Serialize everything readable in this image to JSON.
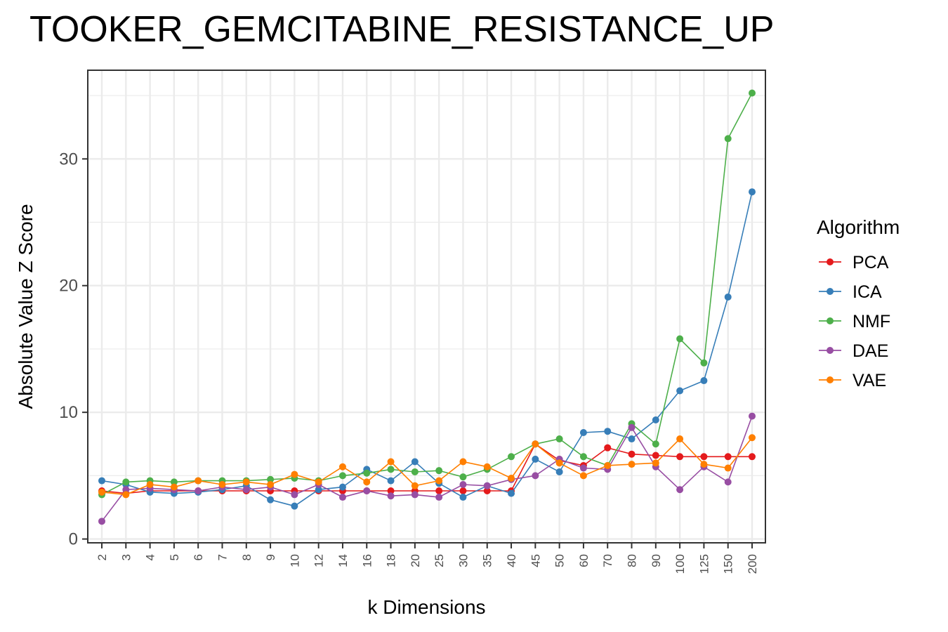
{
  "chart_data": {
    "type": "line",
    "title": "TOOKER_GEMCITABINE_RESISTANCE_UP",
    "xlabel": "k Dimensions",
    "ylabel": "Absolute Value Z Score",
    "x_scale": "categorical",
    "categories": [
      "2",
      "3",
      "4",
      "5",
      "6",
      "7",
      "8",
      "9",
      "10",
      "12",
      "14",
      "16",
      "18",
      "20",
      "25",
      "30",
      "35",
      "40",
      "45",
      "50",
      "60",
      "70",
      "80",
      "90",
      "100",
      "125",
      "150",
      "200"
    ],
    "y_ticks": [
      0,
      10,
      20,
      30
    ],
    "ylim": [
      -0.3,
      37
    ],
    "grid": true,
    "legend_title": "Algorithm",
    "legend_position": "right",
    "series": [
      {
        "name": "PCA",
        "color": "#e41a1c",
        "values": [
          3.8,
          3.6,
          3.8,
          3.8,
          3.8,
          3.8,
          3.8,
          3.8,
          3.8,
          3.8,
          3.8,
          3.8,
          3.8,
          3.8,
          3.8,
          3.8,
          3.8,
          3.8,
          7.5,
          6.2,
          5.8,
          7.2,
          6.7,
          6.6,
          6.5,
          6.5,
          6.5,
          6.5
        ]
      },
      {
        "name": "ICA",
        "color": "#377eb8",
        "values": [
          4.6,
          4.3,
          3.7,
          3.6,
          3.7,
          3.9,
          4.2,
          3.1,
          2.6,
          3.9,
          4.1,
          5.5,
          4.6,
          6.1,
          4.4,
          3.3,
          4.2,
          3.6,
          6.3,
          5.3,
          8.4,
          8.5,
          7.9,
          9.4,
          11.7,
          12.5,
          19.1,
          27.4
        ]
      },
      {
        "name": "NMF",
        "color": "#4daf4a",
        "values": [
          3.5,
          4.5,
          4.6,
          4.5,
          4.6,
          4.6,
          4.6,
          4.7,
          4.8,
          4.6,
          5.0,
          5.2,
          5.5,
          5.3,
          5.4,
          4.9,
          5.5,
          6.5,
          7.5,
          7.9,
          6.5,
          5.8,
          9.1,
          7.5,
          15.8,
          13.9,
          31.6,
          35.2
        ]
      },
      {
        "name": "DAE",
        "color": "#984ea3",
        "values": [
          1.4,
          3.9,
          4.0,
          3.9,
          3.8,
          4.1,
          3.9,
          4.1,
          3.5,
          4.3,
          3.3,
          3.8,
          3.4,
          3.5,
          3.3,
          4.3,
          4.2,
          4.7,
          5.0,
          6.3,
          5.6,
          5.5,
          8.8,
          5.7,
          3.9,
          5.7,
          4.5,
          9.7
        ]
      },
      {
        "name": "VAE",
        "color": "#ff7f00",
        "values": [
          3.7,
          3.5,
          4.3,
          4.1,
          4.6,
          4.3,
          4.5,
          4.3,
          5.1,
          4.5,
          5.7,
          4.5,
          6.1,
          4.2,
          4.6,
          6.1,
          5.7,
          4.8,
          7.5,
          6.0,
          5.0,
          5.8,
          5.9,
          6.0,
          7.9,
          5.9,
          5.6,
          8.0
        ]
      }
    ]
  }
}
